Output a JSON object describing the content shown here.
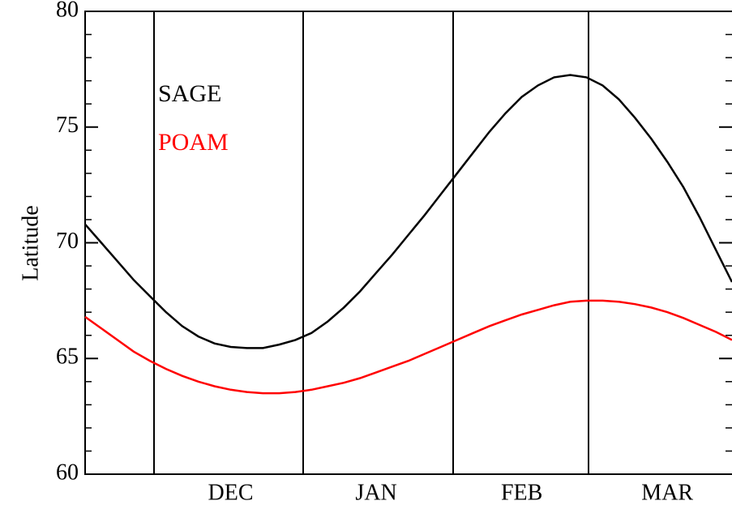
{
  "chart_data": {
    "type": "line",
    "y_label": "Latitude",
    "categories": [
      null,
      null,
      null,
      null,
      null,
      null,
      null,
      null,
      null,
      "DEC",
      null,
      null,
      null,
      null,
      null,
      null,
      null,
      null,
      "JAN",
      null,
      null,
      null,
      null,
      null,
      null,
      null,
      null,
      "FEB",
      null,
      null,
      null,
      null,
      null,
      null,
      null,
      null,
      "MAR",
      null,
      null,
      null,
      null
    ],
    "series": [
      {
        "name": "SAGE",
        "color": "#000000",
        "values": [
          70.8,
          70.0,
          69.2,
          68.4,
          67.7,
          67.0,
          66.4,
          65.95,
          65.65,
          65.5,
          65.45,
          65.45,
          65.6,
          65.8,
          66.1,
          66.6,
          67.2,
          67.9,
          68.7,
          69.5,
          70.35,
          71.2,
          72.1,
          73.0,
          73.9,
          74.8,
          75.6,
          76.3,
          76.8,
          77.15,
          77.25,
          77.15,
          76.8,
          76.2,
          75.4,
          74.5,
          73.5,
          72.4,
          71.1,
          69.7,
          68.3
        ]
      },
      {
        "name": "POAM",
        "color": "#ff0000",
        "values": [
          66.8,
          66.3,
          65.8,
          65.3,
          64.9,
          64.55,
          64.25,
          64.0,
          63.8,
          63.65,
          63.55,
          63.5,
          63.5,
          63.55,
          63.65,
          63.8,
          63.95,
          64.15,
          64.4,
          64.65,
          64.9,
          65.2,
          65.5,
          65.8,
          66.1,
          66.4,
          66.65,
          66.9,
          67.1,
          67.3,
          67.45,
          67.5,
          67.5,
          67.45,
          67.35,
          67.2,
          67.0,
          66.75,
          66.45,
          66.15,
          65.8
        ]
      }
    ],
    "ylim": [
      60,
      80
    ],
    "yticks": [
      60,
      65,
      70,
      75,
      80
    ],
    "y_minor_ticks": [
      61,
      62,
      63,
      64,
      66,
      67,
      68,
      69,
      71,
      72,
      73,
      74,
      76,
      77,
      78,
      79
    ]
  }
}
